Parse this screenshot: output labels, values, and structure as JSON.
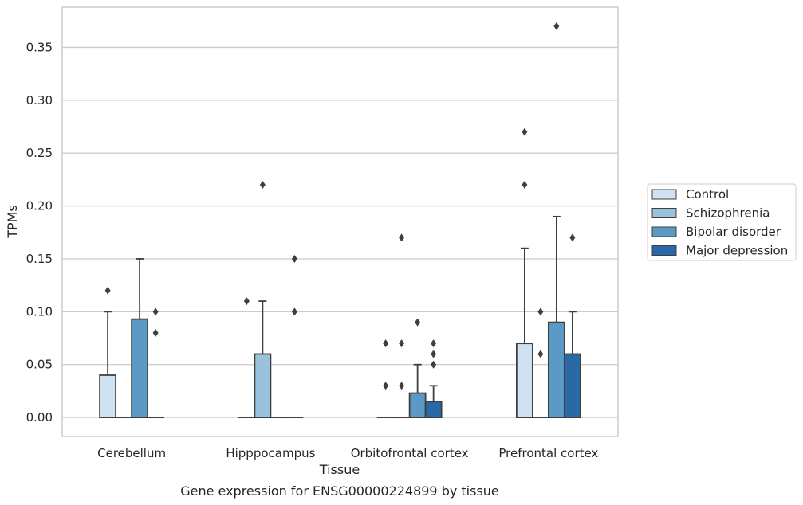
{
  "chart_data": {
    "type": "box",
    "xlabel": "Tissue",
    "ylabel": "TPMs",
    "caption": "Gene expression for ENSG00000224899 by tissue",
    "ylim": [
      -0.018,
      0.388
    ],
    "yticks": [
      0.0,
      0.05,
      0.1,
      0.15,
      0.2,
      0.25,
      0.3,
      0.35
    ],
    "ytick_labels": [
      "0.00",
      "0.05",
      "0.10",
      "0.15",
      "0.20",
      "0.25",
      "0.30",
      "0.35"
    ],
    "grid": "horizontal",
    "legend_position": "right",
    "categories": [
      "Cerebellum",
      "Hipppocampus",
      "Orbitofrontal cortex",
      "Prefrontal cortex"
    ],
    "series": [
      {
        "name": "Control",
        "color": "#d0e1f1",
        "boxes": [
          {
            "q1": 0,
            "median": 0,
            "q3": 0.04,
            "whisker_low": 0,
            "whisker_high": 0.1,
            "outliers": [
              0.12
            ]
          },
          {
            "q1": 0,
            "median": 0,
            "q3": 0,
            "whisker_low": 0,
            "whisker_high": 0,
            "outliers": [
              0.11
            ]
          },
          {
            "q1": 0,
            "median": 0,
            "q3": 0,
            "whisker_low": 0,
            "whisker_high": 0,
            "outliers": [
              0.03,
              0.07
            ]
          },
          {
            "q1": 0,
            "median": 0,
            "q3": 0.07,
            "whisker_low": 0,
            "whisker_high": 0.16,
            "outliers": [
              0.22,
              0.27
            ]
          }
        ]
      },
      {
        "name": "Schizophrenia",
        "color": "#9ac2dc",
        "boxes": [
          {
            "q1": 0,
            "median": 0,
            "q3": 0,
            "whisker_low": 0,
            "whisker_high": 0,
            "outliers": []
          },
          {
            "q1": 0,
            "median": 0,
            "q3": 0.06,
            "whisker_low": 0,
            "whisker_high": 0.11,
            "outliers": [
              0.22
            ]
          },
          {
            "q1": 0,
            "median": 0,
            "q3": 0,
            "whisker_low": 0,
            "whisker_high": 0,
            "outliers": [
              0.03,
              0.07,
              0.17
            ]
          },
          {
            "q1": 0,
            "median": 0,
            "q3": 0,
            "whisker_low": 0,
            "whisker_high": 0,
            "outliers": [
              0.06,
              0.1
            ]
          }
        ]
      },
      {
        "name": "Bipolar disorder",
        "color": "#5a9ac5",
        "boxes": [
          {
            "q1": 0,
            "median": 0,
            "q3": 0.093,
            "whisker_low": 0,
            "whisker_high": 0.15,
            "outliers": []
          },
          {
            "q1": 0,
            "median": 0,
            "q3": 0,
            "whisker_low": 0,
            "whisker_high": 0,
            "outliers": []
          },
          {
            "q1": 0,
            "median": 0,
            "q3": 0.023,
            "whisker_low": 0,
            "whisker_high": 0.05,
            "outliers": [
              0.09
            ]
          },
          {
            "q1": 0,
            "median": 0,
            "q3": 0.09,
            "whisker_low": 0,
            "whisker_high": 0.19,
            "outliers": [
              0.37
            ]
          }
        ]
      },
      {
        "name": "Major depression",
        "color": "#2a69a8",
        "boxes": [
          {
            "q1": 0,
            "median": 0,
            "q3": 0,
            "whisker_low": 0,
            "whisker_high": 0,
            "outliers": [
              0.08,
              0.1
            ]
          },
          {
            "q1": 0,
            "median": 0,
            "q3": 0,
            "whisker_low": 0,
            "whisker_high": 0,
            "outliers": [
              0.1,
              0.15
            ]
          },
          {
            "q1": 0,
            "median": 0,
            "q3": 0.015,
            "whisker_low": 0,
            "whisker_high": 0.03,
            "outliers": [
              0.05,
              0.06,
              0.07
            ]
          },
          {
            "q1": 0,
            "median": 0,
            "q3": 0.06,
            "whisker_low": 0,
            "whisker_high": 0.1,
            "outliers": [
              0.17
            ]
          }
        ]
      }
    ]
  }
}
